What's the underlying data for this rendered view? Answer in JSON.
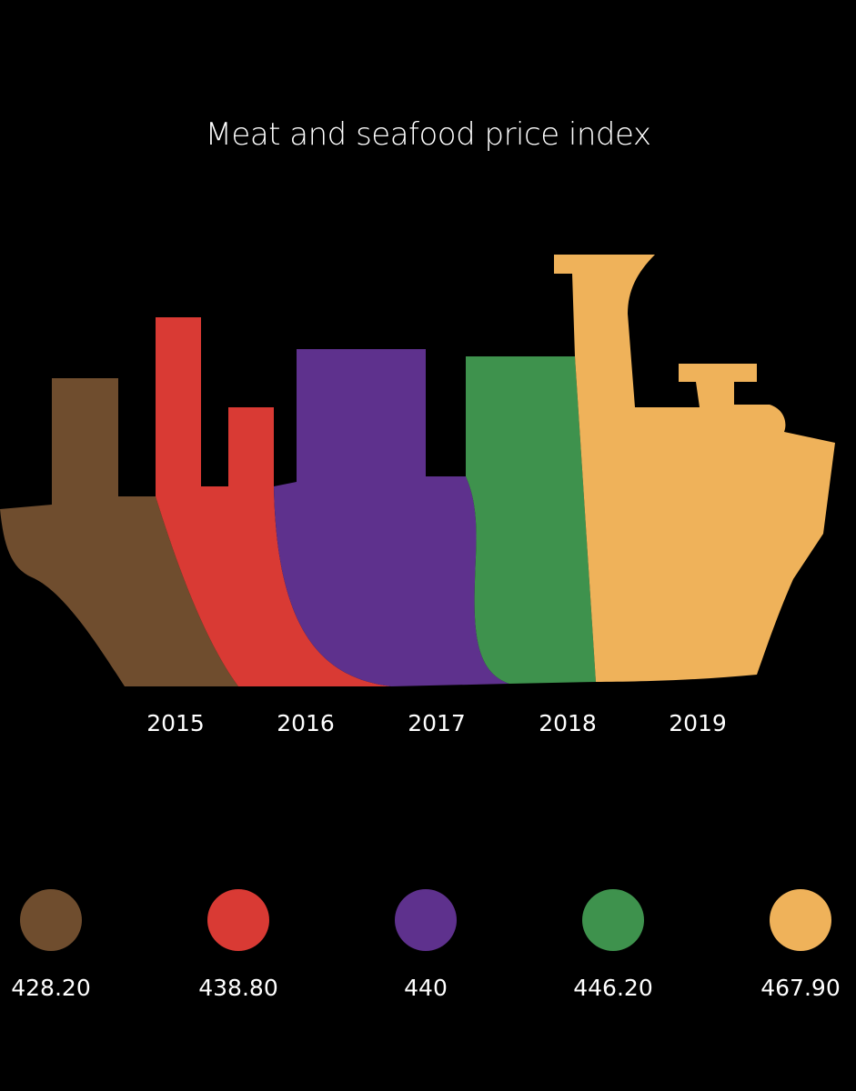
{
  "chart_data": {
    "type": "bar",
    "title": "Meat and seafood price index",
    "categories": [
      "2015",
      "2016",
      "2017",
      "2018",
      "2019"
    ],
    "values": [
      428.2,
      438.8,
      440,
      446.2,
      467.9
    ],
    "value_labels": [
      "428.20",
      "438.80",
      "440",
      "446.20",
      "467.90"
    ],
    "colors": [
      "#6f4d2e",
      "#d93a34",
      "#5e318d",
      "#3e924d",
      "#efb25a"
    ],
    "legend_placement": "bottom",
    "grid": false
  }
}
